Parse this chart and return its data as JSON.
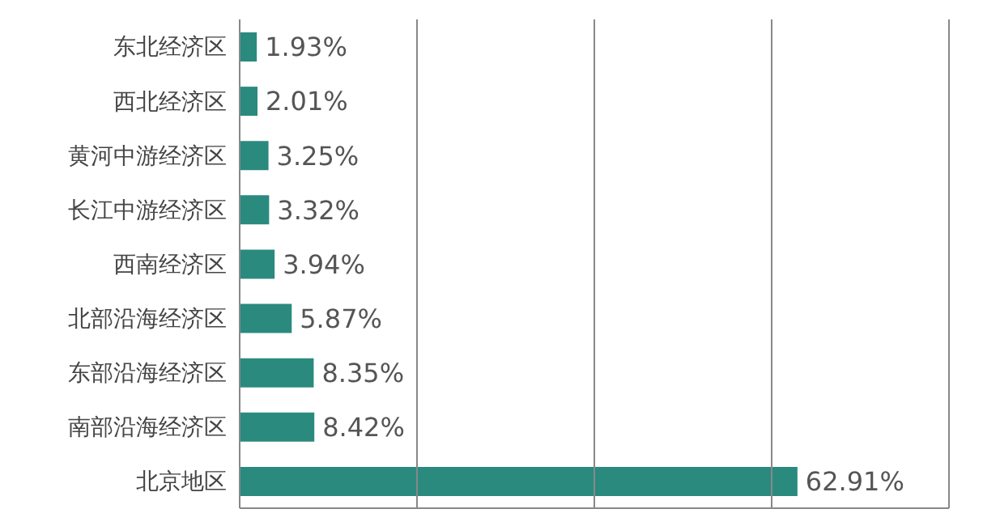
{
  "chart_data": {
    "type": "bar",
    "orientation": "horizontal",
    "categories": [
      "东北经济区",
      "西北经济区",
      "黄河中游经济区",
      "长江中游经济区",
      "西南经济区",
      "北部沿海经济区",
      "东部沿海经济区",
      "南部沿海经济区",
      "北京地区"
    ],
    "values": [
      1.93,
      2.01,
      3.25,
      3.32,
      3.94,
      5.87,
      8.35,
      8.42,
      62.91
    ],
    "value_labels": [
      "1.93%",
      "2.01%",
      "3.25%",
      "3.32%",
      "3.94%",
      "5.87%",
      "8.35%",
      "8.42%",
      "62.91%"
    ],
    "color": "#2a8a7e",
    "xlim": [
      0,
      80
    ],
    "xticks": [
      {
        "value": 0,
        "label": null
      },
      {
        "value": 20,
        "label": null
      },
      {
        "value": 40,
        "label": null
      },
      {
        "value": 60,
        "label": null
      },
      {
        "value": 80,
        "label": null
      }
    ],
    "grid": "x",
    "tick_labels": "y",
    "legend": false
  }
}
